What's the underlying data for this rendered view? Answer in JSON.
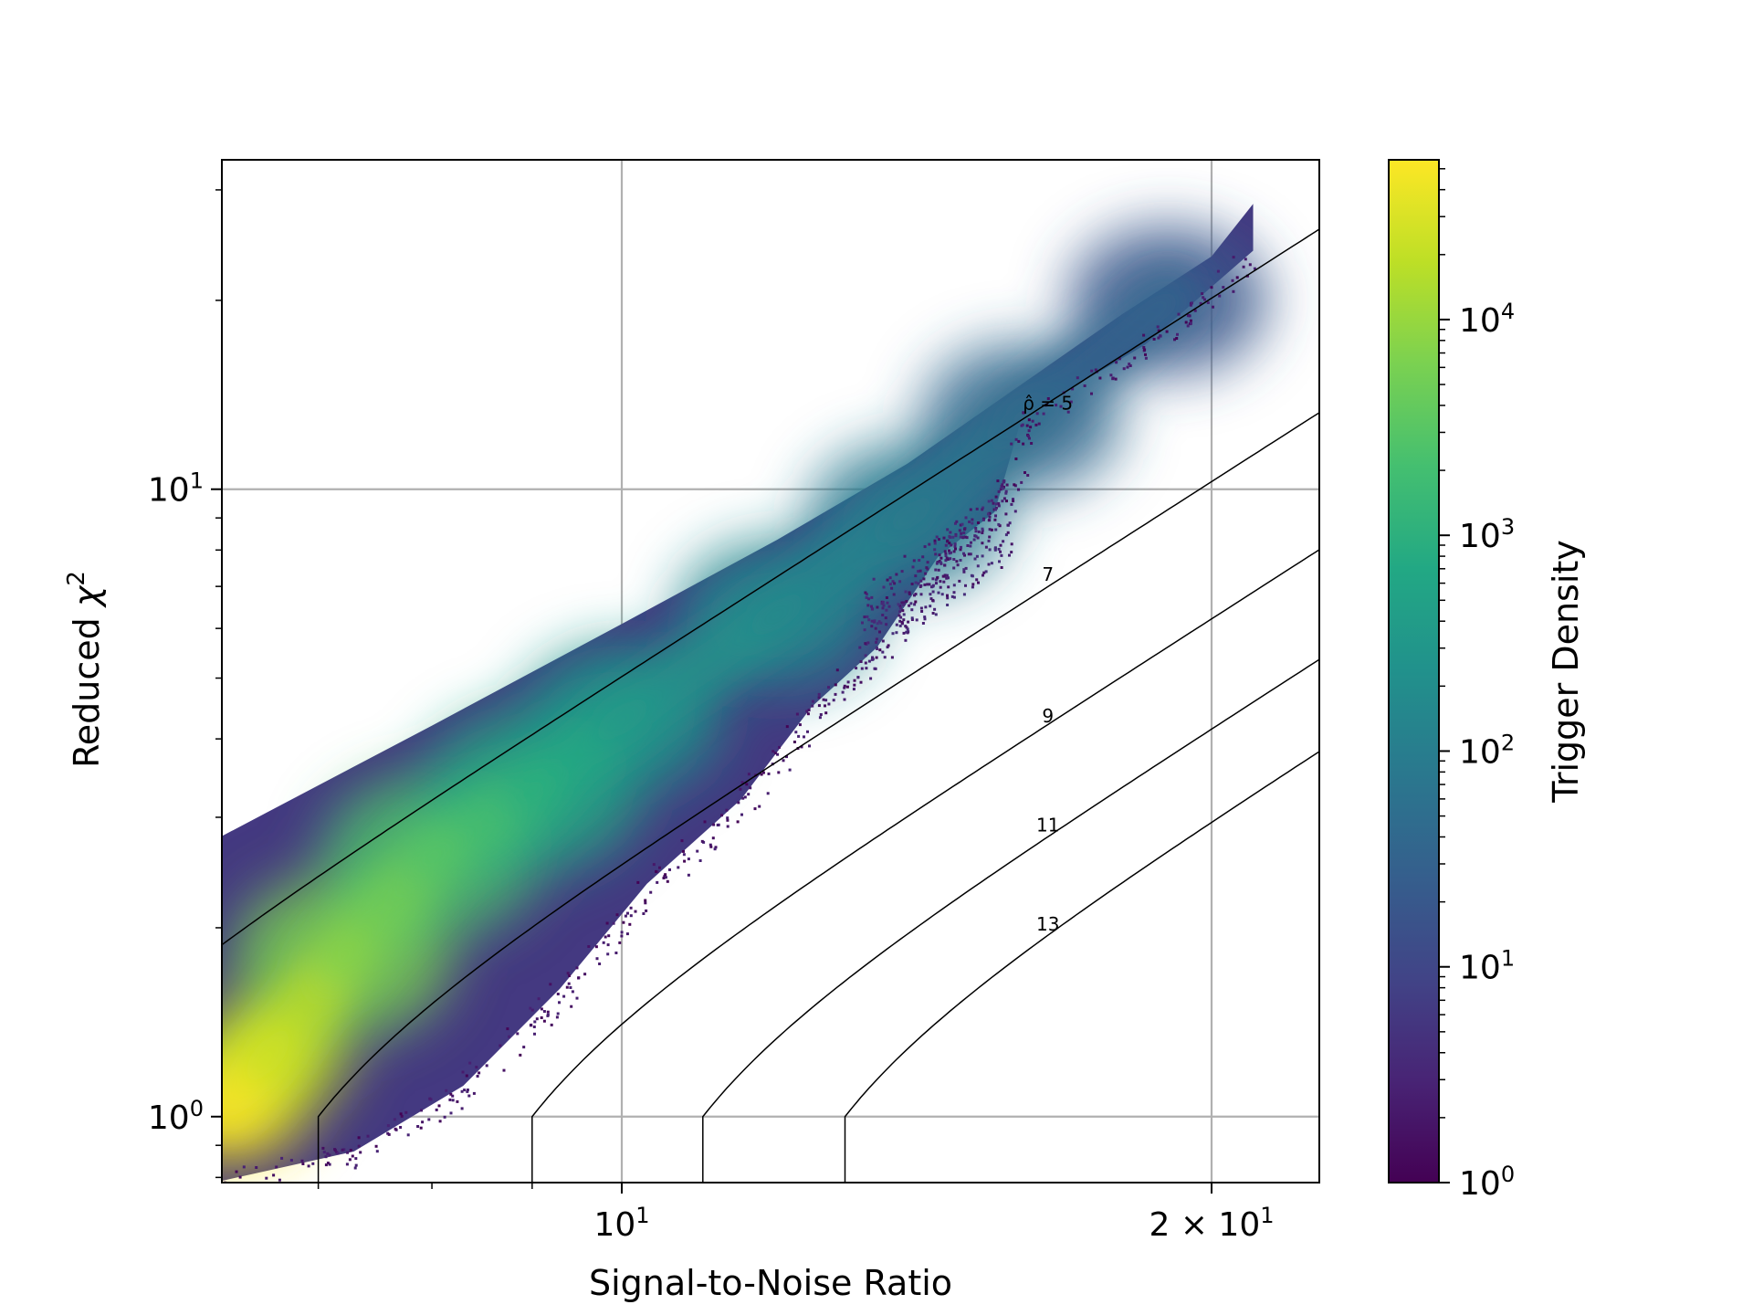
{
  "chart_data": {
    "type": "heatmap",
    "subtype": "hexbin-density-with-contours",
    "title": "",
    "xlabel": "Signal-to-Noise Ratio",
    "ylabel_prefix": "Reduced ",
    "ylabel_symbol": "χ",
    "ylabel_sup": "2",
    "xscale": "log",
    "yscale": "log",
    "xlim": [
      6.25,
      22.7
    ],
    "ylim": [
      0.785,
      33.5
    ],
    "grid": true,
    "x_ticks": [
      {
        "value": 10,
        "base": "10",
        "exp": "1",
        "prefix": ""
      },
      {
        "value": 20,
        "base": "10",
        "exp": "1",
        "prefix": "2 × "
      }
    ],
    "x_minor_ticks": [
      7,
      8,
      9
    ],
    "y_ticks": [
      {
        "value": 1,
        "base": "10",
        "exp": "0"
      },
      {
        "value": 10,
        "base": "10",
        "exp": "1"
      }
    ],
    "colorbar": {
      "label": "Trigger Density",
      "scale": "log",
      "colormap": "viridis",
      "range": [
        1,
        55000
      ],
      "ticks": [
        {
          "value": 1,
          "base": "10",
          "exp": "0"
        },
        {
          "value": 10,
          "base": "10",
          "exp": "1"
        },
        {
          "value": 100,
          "base": "10",
          "exp": "2"
        },
        {
          "value": 1000,
          "base": "10",
          "exp": "3"
        },
        {
          "value": 10000,
          "base": "10",
          "exp": "4"
        }
      ]
    },
    "contours": [
      {
        "label": "ρ̂ = 5",
        "rho": 5,
        "label_at": [
          16.5,
          13.4
        ]
      },
      {
        "label": "7",
        "rho": 7,
        "label_at": [
          16.5,
          7.15
        ]
      },
      {
        "label": "9",
        "rho": 9,
        "label_at": [
          16.5,
          4.25
        ]
      },
      {
        "label": "11",
        "rho": 11,
        "label_at": [
          16.5,
          2.85
        ]
      },
      {
        "label": "13",
        "rho": 13,
        "label_at": [
          16.5,
          1.98
        ]
      }
    ],
    "density_upper_edge": [
      [
        6.25,
        2.8
      ],
      [
        8.0,
        4.2
      ],
      [
        10.0,
        6.1
      ],
      [
        12.0,
        8.3
      ],
      [
        14.0,
        11.0
      ],
      [
        16.0,
        14.7
      ],
      [
        18.0,
        19.0
      ],
      [
        20.0,
        23.5
      ],
      [
        21.0,
        28.5
      ]
    ],
    "density_lower_edge": [
      [
        6.25,
        0.79
      ],
      [
        7.3,
        0.88
      ],
      [
        8.3,
        1.12
      ],
      [
        9.3,
        1.6
      ],
      [
        10.3,
        2.35
      ],
      [
        11.5,
        3.2
      ],
      [
        12.5,
        4.5
      ],
      [
        13.5,
        5.6
      ],
      [
        14.5,
        7.8
      ],
      [
        15.5,
        9.2
      ],
      [
        16.0,
        13.0
      ],
      [
        18.5,
        17.0
      ],
      [
        21.0,
        24.0
      ]
    ],
    "density_core": [
      {
        "snr": 6.3,
        "chi2": 1.05,
        "density": 55000
      },
      {
        "snr": 6.6,
        "chi2": 1.25,
        "density": 20000
      },
      {
        "snr": 7.2,
        "chi2": 1.8,
        "density": 6000
      },
      {
        "snr": 8.0,
        "chi2": 2.6,
        "density": 2500
      },
      {
        "snr": 9.0,
        "chi2": 3.3,
        "density": 800
      },
      {
        "snr": 10.0,
        "chi2": 4.3,
        "density": 300
      },
      {
        "snr": 12.0,
        "chi2": 6.3,
        "density": 150
      },
      {
        "snr": 14.0,
        "chi2": 9.0,
        "density": 80
      },
      {
        "snr": 16.0,
        "chi2": 13.0,
        "density": 40
      },
      {
        "snr": 19.0,
        "chi2": 20.0,
        "density": 20
      }
    ],
    "density_island": {
      "snr": [
        13.2,
        15.8
      ],
      "chi2": [
        6.0,
        9.0
      ],
      "density": 3
    }
  }
}
